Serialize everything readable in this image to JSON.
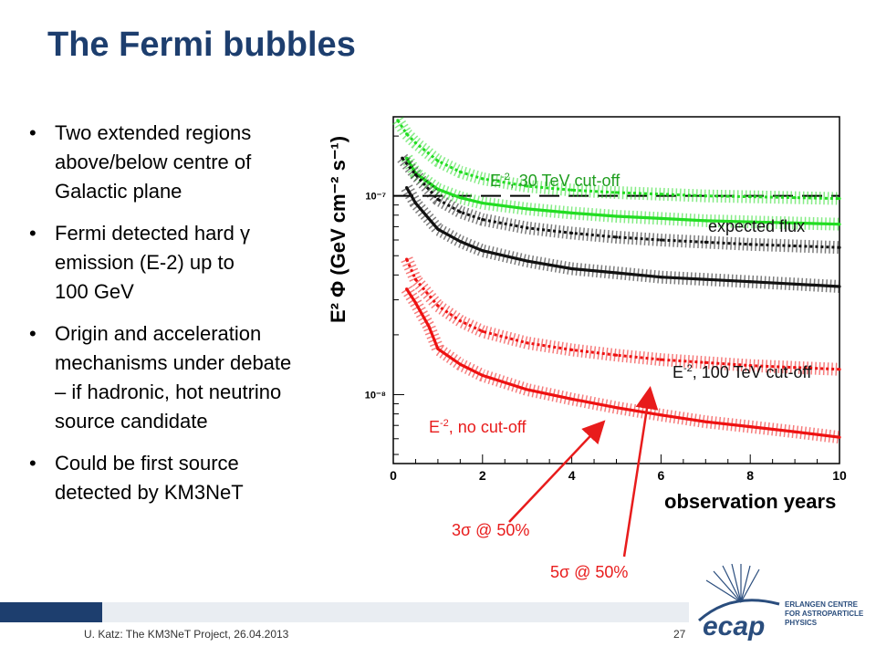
{
  "slide": {
    "title": "The Fermi bubbles",
    "bullets": [
      [
        "Two extended regions",
        "above/below centre of",
        "Galactic plane"
      ],
      [
        "Fermi detected hard γ",
        "emission (E-2) up to",
        "100 GeV"
      ],
      [
        "Origin and acceleration",
        "mechanisms under debate",
        "– if hadronic, hot neutrino",
        "source candidate"
      ],
      [
        "Could be first source",
        "detected by KM3NeT"
      ]
    ],
    "footer": "U. Katz: The KM3NeT Project, 26.04.2013",
    "page_number": "27",
    "logo_text": [
      "ERLANGEN CENTRE",
      "FOR ASTROPARTICLE",
      "PHYSICS"
    ],
    "logo_word": "ecap"
  },
  "annotations": {
    "green": {
      "base": "E",
      "exp": "-2",
      "rest": ", 30 TeV cut-off"
    },
    "black": {
      "base": "E",
      "exp": "-2",
      "rest": ", 100 TeV cut-off"
    },
    "red": {
      "base": "E",
      "exp": "-2",
      "rest": ", no cut-off"
    },
    "expected": "expected flux",
    "sigma3": "3σ @ 50%",
    "sigma5": "5σ @ 50%"
  },
  "chart_data": {
    "type": "line",
    "xlabel": "observation years",
    "ylabel": "E² Φ (GeV cm⁻² s⁻¹)",
    "x_ticks": [
      "0",
      "2",
      "4",
      "6",
      "8",
      "10"
    ],
    "y_ticks": [
      "10⁻⁷",
      "10⁻⁸"
    ],
    "xlim": [
      0,
      10
    ],
    "ylim": [
      4.5e-09,
      2.5e-07
    ],
    "y_scale": "log",
    "colors": {
      "green": "#22dd22",
      "black": "#111111",
      "red": "#ee1111"
    },
    "expected_flux": 1e-07,
    "series": [
      {
        "color_key": "green",
        "kind": "3σ @ 50%",
        "x": [
          0.3,
          0.5,
          1,
          1.5,
          2,
          3,
          4,
          5,
          6,
          7,
          8,
          9,
          10
        ],
        "y": [
          1.55e-07,
          1.3e-07,
          1.08e-07,
          9.8e-08,
          9.2e-08,
          8.6e-08,
          8.2e-08,
          7.9e-08,
          7.7e-08,
          7.5e-08,
          7.4e-08,
          7.3e-08,
          7.2e-08
        ]
      },
      {
        "color_key": "green",
        "kind": "5σ @ 50%",
        "x": [
          0.1,
          0.3,
          0.5,
          1,
          1.5,
          2,
          3,
          4,
          5,
          6,
          7,
          8,
          9,
          10
        ],
        "y": [
          2.4e-07,
          2.05e-07,
          1.85e-07,
          1.5e-07,
          1.32e-07,
          1.22e-07,
          1.12e-07,
          1.07e-07,
          1.04e-07,
          1.02e-07,
          1e-07,
          9.9e-08,
          9.8e-08,
          9.7e-08
        ]
      },
      {
        "color_key": "black",
        "kind": "3σ @ 50%",
        "x": [
          0.3,
          0.5,
          1,
          1.5,
          2,
          3,
          4,
          5,
          6,
          7,
          8,
          9,
          10
        ],
        "y": [
          1.1e-07,
          9.2e-08,
          6.8e-08,
          5.9e-08,
          5.3e-08,
          4.7e-08,
          4.3e-08,
          4.1e-08,
          3.9e-08,
          3.8e-08,
          3.7e-08,
          3.6e-08,
          3.5e-08
        ]
      },
      {
        "color_key": "black",
        "kind": "5σ @ 50%",
        "x": [
          0.2,
          0.5,
          1,
          1.5,
          2,
          3,
          4,
          5,
          6,
          7,
          8,
          9,
          10
        ],
        "y": [
          1.55e-07,
          1.28e-07,
          9.6e-08,
          8.3e-08,
          7.6e-08,
          6.9e-08,
          6.5e-08,
          6.2e-08,
          6e-08,
          5.85e-08,
          5.7e-08,
          5.6e-08,
          5.5e-08
        ]
      },
      {
        "color_key": "red",
        "kind": "3σ @ 50%",
        "x": [
          0.3,
          0.5,
          0.8,
          1,
          1.5,
          2,
          3,
          4,
          5,
          6,
          7,
          8,
          9,
          10
        ],
        "y": [
          3.4e-08,
          2.9e-08,
          2.2e-08,
          1.7e-08,
          1.42e-08,
          1.25e-08,
          1.06e-08,
          9.5e-09,
          8.6e-09,
          7.9e-09,
          7.3e-09,
          6.9e-09,
          6.5e-09,
          6.1e-09
        ]
      },
      {
        "color_key": "red",
        "kind": "5σ @ 50%",
        "x": [
          0.3,
          0.5,
          1,
          1.5,
          2,
          3,
          4,
          5,
          6,
          7,
          8,
          9,
          10
        ],
        "y": [
          4.8e-08,
          3.8e-08,
          2.8e-08,
          2.35e-08,
          2.08e-08,
          1.82e-08,
          1.68e-08,
          1.58e-08,
          1.5e-08,
          1.45e-08,
          1.4e-08,
          1.37e-08,
          1.34e-08
        ]
      }
    ]
  }
}
